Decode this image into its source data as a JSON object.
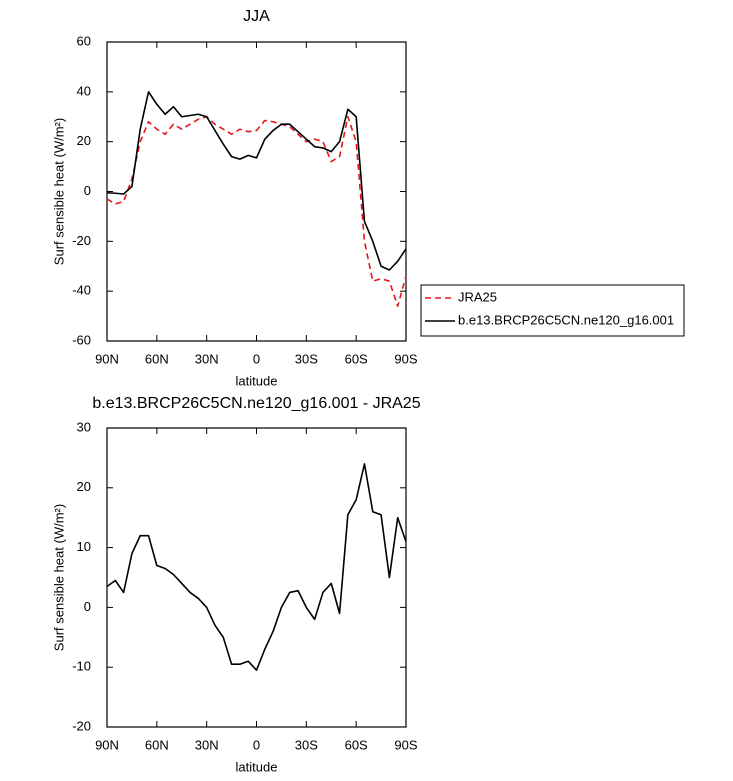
{
  "chart_data": [
    {
      "type": "line",
      "title": "JJA",
      "x_label": "latitude",
      "y_label": "Surf sensible heat (W/m²)",
      "x": [
        90,
        85,
        80,
        75,
        70,
        65,
        60,
        55,
        50,
        45,
        40,
        35,
        30,
        25,
        20,
        15,
        10,
        5,
        0,
        -5,
        -10,
        -15,
        -20,
        -25,
        -30,
        -35,
        -40,
        -45,
        -50,
        -55,
        -60,
        -65,
        -70,
        -75,
        -80,
        -85,
        -90
      ],
      "xlim": [
        90,
        -90
      ],
      "xticks": [
        {
          "value": 90,
          "label": "90N"
        },
        {
          "value": 60,
          "label": "60N"
        },
        {
          "value": 30,
          "label": "30N"
        },
        0,
        {
          "value": -30,
          "label": "30S"
        },
        {
          "value": -60,
          "label": "60S"
        },
        {
          "value": -90,
          "label": "90S"
        }
      ],
      "ylim": [
        -60,
        60
      ],
      "yticks": [
        -60,
        -40,
        -20,
        0,
        20,
        40,
        60
      ],
      "legend": "outside-right",
      "series": [
        {
          "name": "JRA25",
          "color": "#e8141b",
          "line_style": "dashed",
          "values": [
            -3,
            -5,
            -4,
            5,
            20,
            28,
            25,
            23,
            27,
            25,
            27,
            29,
            30,
            27,
            25,
            23,
            25,
            24,
            24.5,
            28.5,
            28,
            27,
            26,
            23,
            20,
            21,
            20,
            12,
            14,
            30,
            20,
            -20,
            -36,
            -35,
            -36,
            -46,
            -34
          ]
        },
        {
          "name": "b.e13.BRCP26C5CN.ne120_g16.001",
          "color": "#000000",
          "line_style": "solid",
          "values": [
            -0.5,
            -0.7,
            -1,
            2,
            25,
            40,
            35,
            31,
            34,
            30,
            30.5,
            31,
            30,
            24.5,
            19,
            14,
            13,
            14.5,
            13.5,
            21,
            24.5,
            27,
            27,
            24,
            21,
            18,
            17.5,
            16,
            20,
            33,
            30,
            -12,
            -20,
            -30,
            -31.5,
            -28,
            -23
          ]
        }
      ]
    },
    {
      "type": "line",
      "title": "b.e13.BRCP26C5CN.ne120_g16.001 - JRA25",
      "x_label": "latitude",
      "y_label": "Surf sensible heat (W/m²)",
      "x": [
        90,
        85,
        80,
        75,
        70,
        65,
        60,
        55,
        50,
        45,
        40,
        35,
        30,
        25,
        20,
        15,
        10,
        5,
        0,
        -5,
        -10,
        -15,
        -20,
        -25,
        -30,
        -35,
        -40,
        -45,
        -50,
        -55,
        -60,
        -65,
        -70,
        -75,
        -80,
        -85,
        -90
      ],
      "xlim": [
        90,
        -90
      ],
      "xticks": [
        {
          "value": 90,
          "label": "90N"
        },
        {
          "value": 60,
          "label": "60N"
        },
        {
          "value": 30,
          "label": "30N"
        },
        0,
        {
          "value": -30,
          "label": "30S"
        },
        {
          "value": -60,
          "label": "60S"
        },
        {
          "value": -90,
          "label": "90S"
        }
      ],
      "ylim": [
        -20,
        30
      ],
      "yticks": [
        -20,
        -10,
        0,
        10,
        20,
        30
      ],
      "series": [
        {
          "color": "#000000",
          "line_style": "solid",
          "values": [
            3.5,
            4.5,
            2.5,
            9,
            12,
            12,
            7,
            6.5,
            5.5,
            4,
            2.5,
            1.5,
            0,
            -3,
            -5,
            -9.5,
            -9.5,
            -9,
            -10.5,
            -7,
            -4,
            0,
            2.5,
            2.8,
            0,
            -2,
            2.5,
            4,
            -1,
            15.5,
            18,
            24,
            16,
            15.5,
            5,
            15,
            11
          ]
        }
      ]
    }
  ]
}
